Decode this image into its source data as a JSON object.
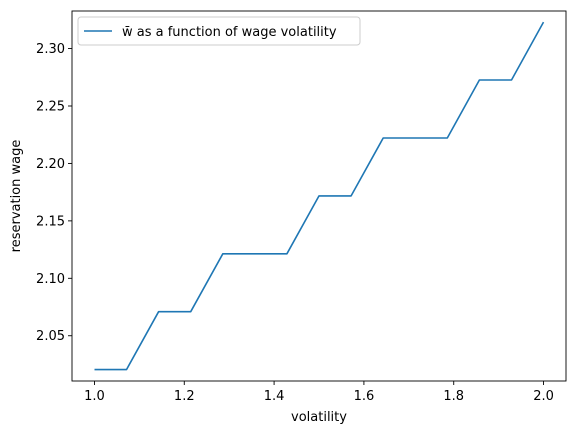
{
  "chart_data": {
    "type": "line",
    "title": "",
    "xlabel": "volatility",
    "ylabel": "reservation wage",
    "xlim": [
      0.95,
      2.05
    ],
    "ylim": [
      2.0106,
      2.3327
    ],
    "grid": false,
    "legend_placement": "top-left",
    "xticks": [
      1.0,
      1.2,
      1.4,
      1.6,
      1.8,
      2.0
    ],
    "xtick_labels": [
      "1.0",
      "1.2",
      "1.4",
      "1.6",
      "1.8",
      "2.0"
    ],
    "yticks": [
      2.05,
      2.1,
      2.15,
      2.2,
      2.25,
      2.3
    ],
    "ytick_labels": [
      "2.05",
      "2.10",
      "2.15",
      "2.20",
      "2.25",
      "2.30"
    ],
    "series": [
      {
        "name": "w̄ as a function of wage volatility",
        "color": "#1f77b4",
        "x": [
          1.0,
          1.0714,
          1.1429,
          1.2143,
          1.2857,
          1.3571,
          1.4286,
          1.5,
          1.5714,
          1.6429,
          1.7143,
          1.7857,
          1.8571,
          1.9286,
          2.0
        ],
        "y": [
          2.0205,
          2.0205,
          2.0709,
          2.0709,
          2.1213,
          2.1213,
          2.1213,
          2.1717,
          2.1717,
          2.2221,
          2.2221,
          2.2221,
          2.2726,
          2.2726,
          2.323
        ]
      }
    ]
  }
}
